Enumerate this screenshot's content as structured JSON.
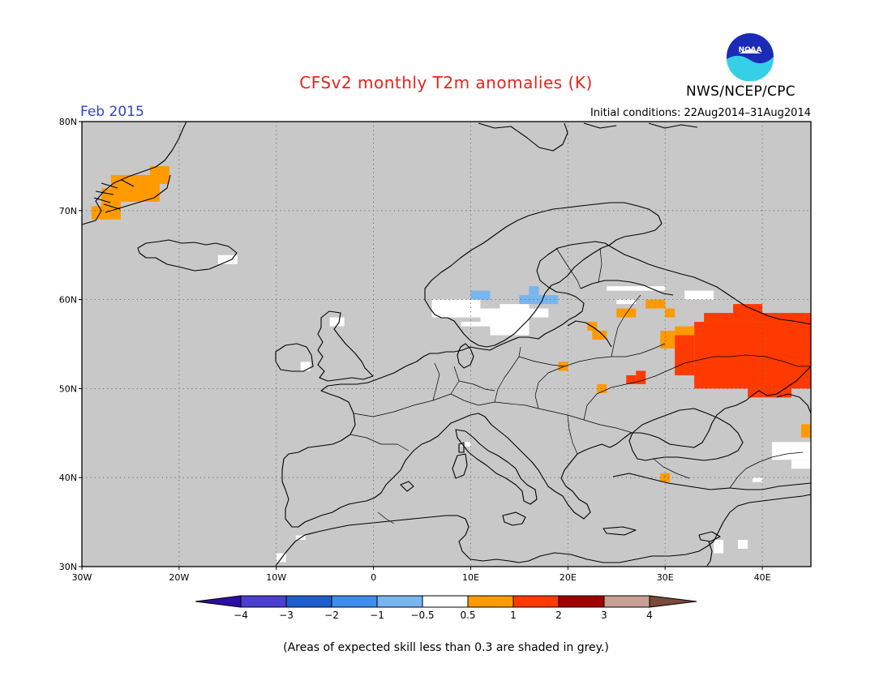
{
  "header": {
    "title": "CFSv2 monthly T2m anomalies (K)",
    "period": "Feb 2015",
    "initial_conditions": "Initial conditions: 22Aug2014–31Aug2014",
    "agency": "NWS/NCEP/CPC",
    "logo_text": "NOAA"
  },
  "map": {
    "lon_range": [
      -30,
      45
    ],
    "lat_range": [
      30,
      80
    ],
    "lon_ticks": [
      {
        "value": -30,
        "label": "30W"
      },
      {
        "value": -20,
        "label": "20W"
      },
      {
        "value": -10,
        "label": "10W"
      },
      {
        "value": 0,
        "label": "0"
      },
      {
        "value": 10,
        "label": "10E"
      },
      {
        "value": 20,
        "label": "20E"
      },
      {
        "value": 30,
        "label": "30E"
      },
      {
        "value": 40,
        "label": "40E"
      }
    ],
    "lat_ticks": [
      {
        "value": 30,
        "label": "30N"
      },
      {
        "value": 40,
        "label": "40N"
      },
      {
        "value": 50,
        "label": "50N"
      },
      {
        "value": 60,
        "label": "60N"
      },
      {
        "value": 70,
        "label": "70N"
      },
      {
        "value": 80,
        "label": "80N"
      }
    ],
    "background_color": "#c8c8c8",
    "grid": true
  },
  "colorbar": {
    "tick_labels": [
      "−4",
      "−3",
      "−2",
      "−1",
      "−0.5",
      "0.5",
      "1",
      "2",
      "3",
      "4"
    ],
    "colors": [
      "#2a0fa5",
      "#4a3fd0",
      "#1f5ed1",
      "#3c8ef0",
      "#79b5ef",
      "#ffffff",
      "#ff9a00",
      "#ff3a00",
      "#a00000",
      "#c8a095",
      "#7a4a3c"
    ]
  },
  "footnote": "(Areas of expected skill less than 0.3 are shaded in grey.)",
  "anomaly_regions": [
    {
      "name": "western-russia-warm",
      "category": "1 to 2",
      "color": "#ff3a00",
      "cells": [
        [
          33,
          57.5,
          45,
          50
        ],
        [
          31,
          56,
          33,
          51.5
        ],
        [
          40,
          58.5,
          45,
          56
        ],
        [
          37,
          59.5,
          40,
          57.5
        ],
        [
          34,
          58.5,
          37,
          57.5
        ],
        [
          38.5,
          50,
          43,
          49
        ],
        [
          27,
          52,
          28,
          50.5
        ],
        [
          26,
          51.5,
          27,
          50.5
        ]
      ]
    },
    {
      "name": "russia-orange",
      "category": "0.5 to 1",
      "color": "#ff9a00",
      "cells": [
        [
          29.5,
          56.5,
          31,
          54.5
        ],
        [
          31,
          57,
          33,
          56
        ],
        [
          25,
          59,
          27,
          58
        ],
        [
          28,
          60,
          30,
          59
        ],
        [
          30,
          59,
          31,
          58
        ],
        [
          22.5,
          56.5,
          24,
          55.5
        ],
        [
          22,
          57.5,
          23,
          56.5
        ],
        [
          19,
          53,
          20,
          52
        ],
        [
          23,
          50.5,
          24,
          49.5
        ],
        [
          29.5,
          40.5,
          30.5,
          39.5
        ],
        [
          44,
          46,
          45,
          44.5
        ]
      ]
    },
    {
      "name": "greenland-orange",
      "category": "0.5 to 1",
      "color": "#ff9a00",
      "cells": [
        [
          -27,
          74,
          -22,
          71
        ],
        [
          -28,
          72.5,
          -26,
          70.5
        ],
        [
          -29,
          70.5,
          -26,
          69
        ],
        [
          -23,
          75,
          -21,
          73
        ]
      ]
    },
    {
      "name": "scandinavia-white",
      "category": "-0.5 to 0.5",
      "color": "#ffffff",
      "cells": [
        [
          6,
          60,
          11,
          58
        ],
        [
          11,
          59,
          13,
          57
        ],
        [
          13,
          59.5,
          16,
          57
        ],
        [
          16,
          59,
          18,
          58
        ],
        [
          12,
          57,
          16,
          56
        ],
        [
          9,
          57.5,
          11,
          57
        ],
        [
          24,
          61.5,
          30,
          61
        ],
        [
          32,
          61,
          35,
          60
        ],
        [
          25,
          60,
          27,
          59.5
        ],
        [
          -16,
          65,
          -14,
          64
        ],
        [
          -4.5,
          58,
          -3,
          57
        ],
        [
          -7.5,
          53,
          -6.5,
          52
        ],
        [
          9,
          44,
          10,
          43.5
        ],
        [
          41,
          44,
          45,
          42
        ],
        [
          43,
          42,
          45,
          41
        ],
        [
          37.5,
          33,
          38.5,
          32
        ],
        [
          -8,
          33.5,
          -7,
          33
        ],
        [
          -10,
          31.5,
          -9,
          30.5
        ],
        [
          35,
          33,
          36,
          31.5
        ],
        [
          39,
          40,
          40,
          39.5
        ]
      ]
    },
    {
      "name": "scandinavia-light-blue",
      "category": "-1 to -0.5",
      "color": "#79b5ef",
      "cells": [
        [
          10,
          61,
          12,
          60
        ],
        [
          16,
          61.5,
          17,
          60.5
        ],
        [
          15,
          60.5,
          19,
          59.5
        ]
      ]
    }
  ]
}
